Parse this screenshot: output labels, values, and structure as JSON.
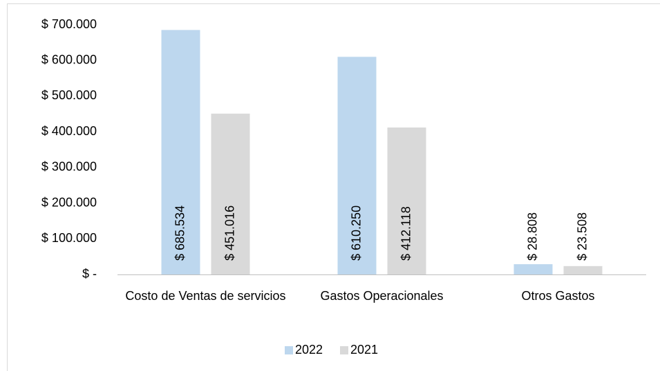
{
  "chart_data": {
    "type": "bar",
    "categories": [
      "Costo de Ventas de servicios",
      "Gastos Operacionales",
      "Otros Gastos"
    ],
    "series": [
      {
        "name": "2022",
        "color": "#bdd7ee",
        "values": [
          685534,
          610250,
          28808
        ],
        "value_labels": [
          "$ 685.534",
          "$ 610.250",
          "$ 28.808"
        ]
      },
      {
        "name": "2021",
        "color": "#d9d9d9",
        "values": [
          451016,
          412118,
          23508
        ],
        "value_labels": [
          "$ 451.016",
          "$ 412.118",
          "$ 23.508"
        ]
      }
    ],
    "ylim": [
      0,
      700000
    ],
    "yticks": [
      {
        "value": 0,
        "label": "$ -"
      },
      {
        "value": 100000,
        "label": "$ 100.000"
      },
      {
        "value": 200000,
        "label": "$ 200.000"
      },
      {
        "value": 300000,
        "label": "$ 300.000"
      },
      {
        "value": 400000,
        "label": "$ 400.000"
      },
      {
        "value": 500000,
        "label": "$ 500.000"
      },
      {
        "value": 600000,
        "label": "$ 600.000"
      },
      {
        "value": 700000,
        "label": "$ 700.000"
      }
    ],
    "grid": false,
    "legend": "bottom"
  }
}
